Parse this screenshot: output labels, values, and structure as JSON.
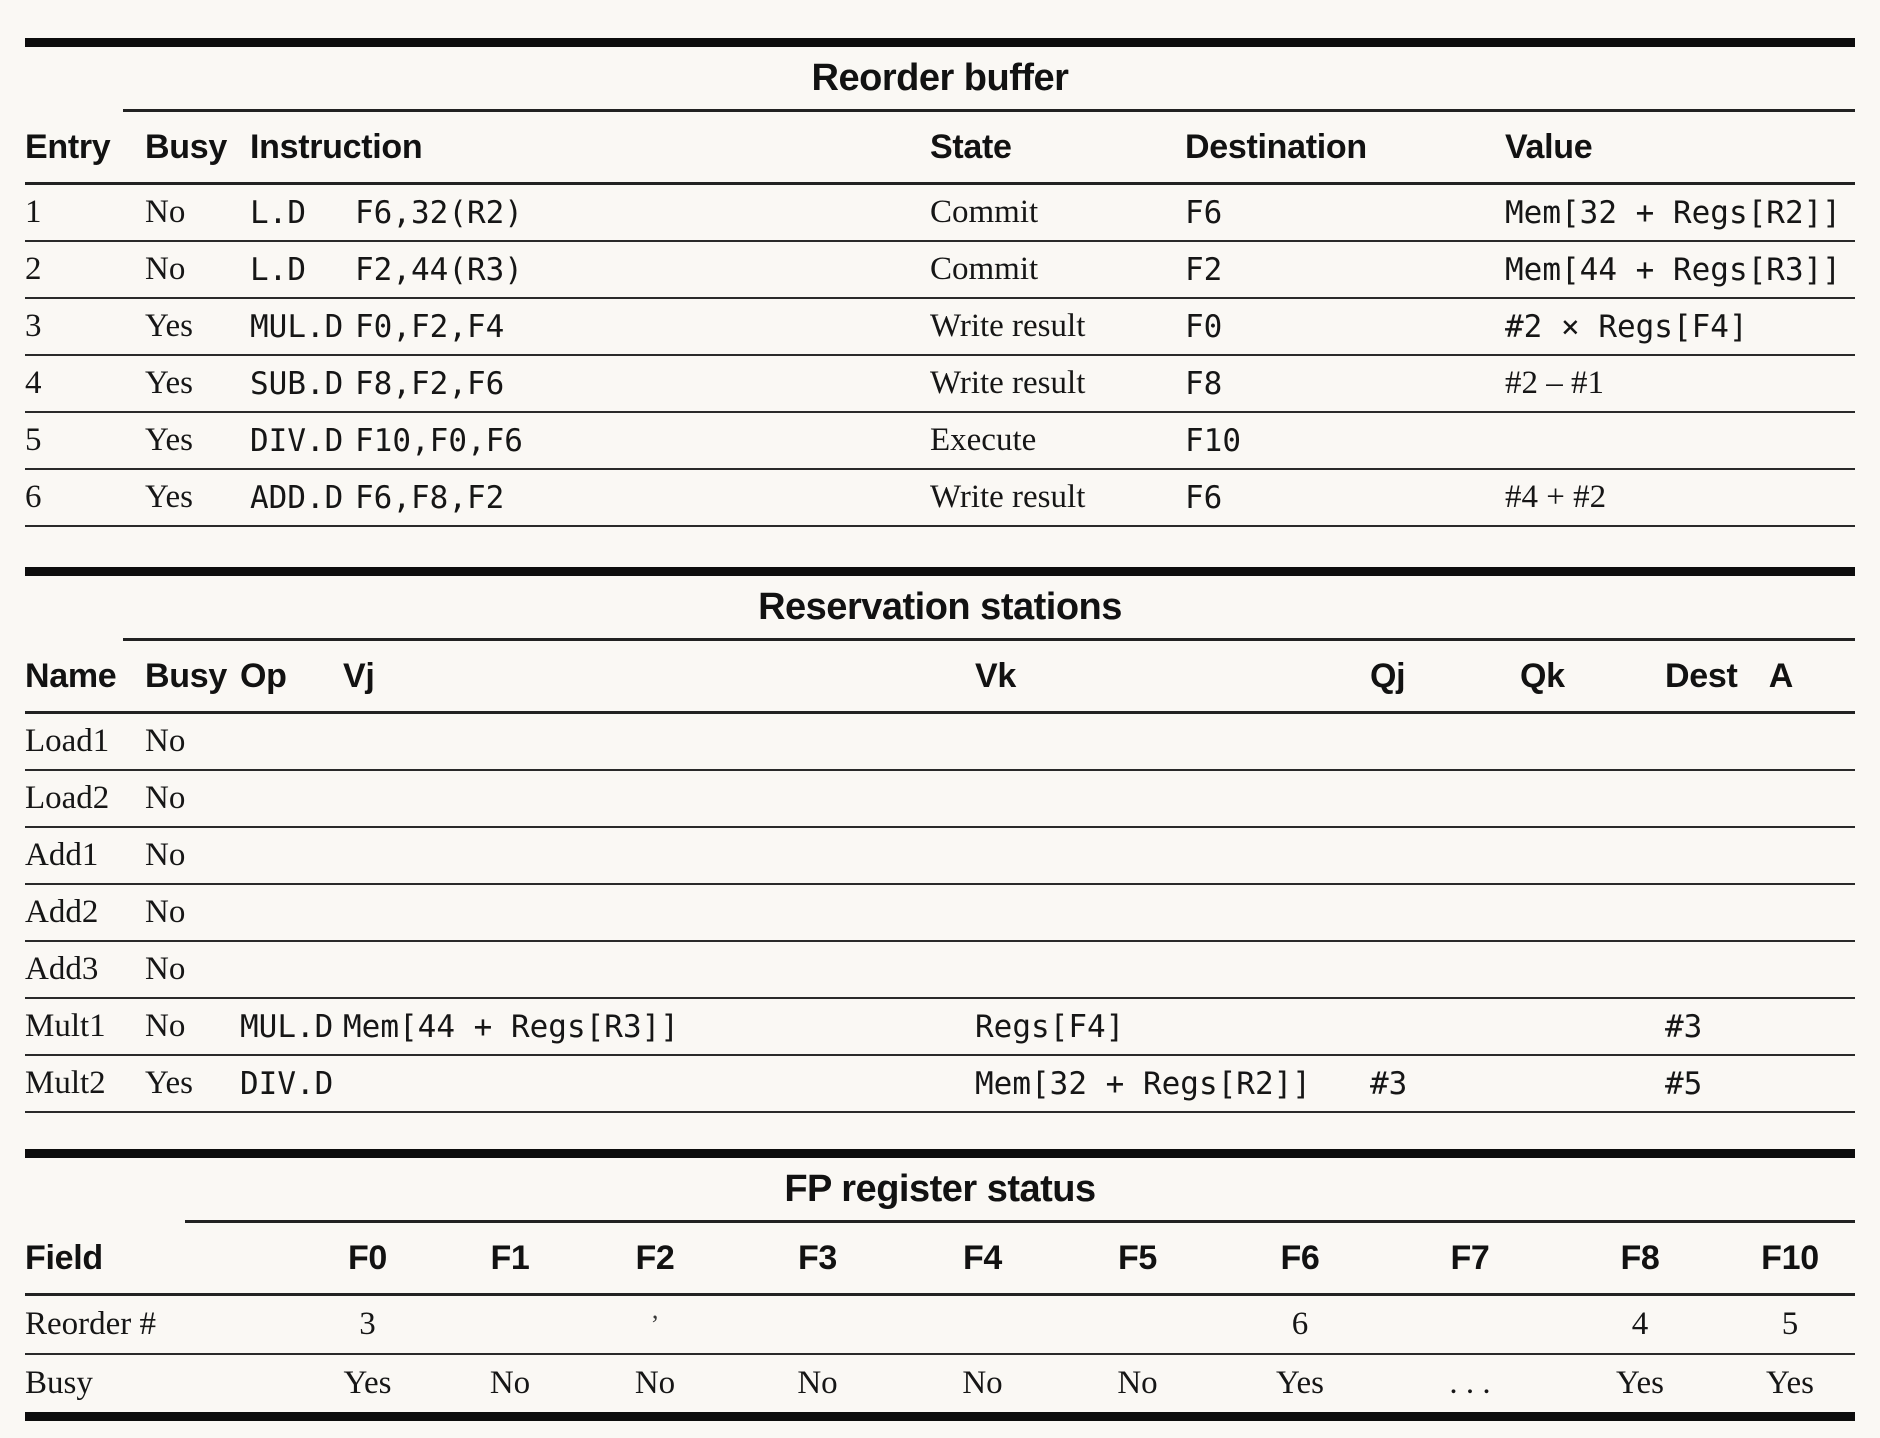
{
  "colors": {
    "ink": "#161616",
    "paper": "#faf8f4"
  },
  "reorder_buffer": {
    "title": "Reorder buffer",
    "headers": {
      "entry": "Entry",
      "busy": "Busy",
      "instruction": "Instruction",
      "state": "State",
      "destination": "Destination",
      "value": "Value"
    },
    "rows": [
      {
        "entry": "1",
        "busy": "No",
        "op": "L.D",
        "operands": "F6,32(R2)",
        "state": "Commit",
        "destination": "F6",
        "value": "Mem[32 + Regs[R2]]"
      },
      {
        "entry": "2",
        "busy": "No",
        "op": "L.D",
        "operands": "F2,44(R3)",
        "state": "Commit",
        "destination": "F2",
        "value": "Mem[44 + Regs[R3]]"
      },
      {
        "entry": "3",
        "busy": "Yes",
        "op": "MUL.D",
        "operands": "F0,F2,F4",
        "state": "Write result",
        "destination": "F0",
        "value": "#2 × Regs[F4]"
      },
      {
        "entry": "4",
        "busy": "Yes",
        "op": "SUB.D",
        "operands": "F8,F2,F6",
        "state": "Write result",
        "destination": "F8",
        "value": "#2 – #1"
      },
      {
        "entry": "5",
        "busy": "Yes",
        "op": "DIV.D",
        "operands": "F10,F0,F6",
        "state": "Execute",
        "destination": "F10",
        "value": ""
      },
      {
        "entry": "6",
        "busy": "Yes",
        "op": "ADD.D",
        "operands": "F6,F8,F2",
        "state": "Write result",
        "destination": "F6",
        "value": "#4 + #2"
      }
    ]
  },
  "reservation_stations": {
    "title": "Reservation stations",
    "headers": {
      "name": "Name",
      "busy": "Busy",
      "op": "Op",
      "vj": "Vj",
      "vk": "Vk",
      "qj": "Qj",
      "qk": "Qk",
      "dest": "Dest",
      "a": "A"
    },
    "rows": [
      {
        "name": "Load1",
        "busy": "No",
        "op": "",
        "vj": "",
        "vk": "",
        "qj": "",
        "qk": "",
        "dest": "",
        "a": ""
      },
      {
        "name": "Load2",
        "busy": "No",
        "op": "",
        "vj": "",
        "vk": "",
        "qj": "",
        "qk": "",
        "dest": "",
        "a": ""
      },
      {
        "name": "Add1",
        "busy": "No",
        "op": "",
        "vj": "",
        "vk": "",
        "qj": "",
        "qk": "",
        "dest": "",
        "a": ""
      },
      {
        "name": "Add2",
        "busy": "No",
        "op": "",
        "vj": "",
        "vk": "",
        "qj": "",
        "qk": "",
        "dest": "",
        "a": ""
      },
      {
        "name": "Add3",
        "busy": "No",
        "op": "",
        "vj": "",
        "vk": "",
        "qj": "",
        "qk": "",
        "dest": "",
        "a": ""
      },
      {
        "name": "Mult1",
        "busy": "No",
        "op": "MUL.D",
        "vj": "Mem[44 + Regs[R3]]",
        "vk": "Regs[F4]",
        "qj": "",
        "qk": "",
        "dest": "#3",
        "a": ""
      },
      {
        "name": "Mult2",
        "busy": "Yes",
        "op": "DIV.D",
        "vj": "",
        "vk": "Mem[32 + Regs[R2]]",
        "qj": "#3",
        "qk": "",
        "dest": "#5",
        "a": ""
      }
    ]
  },
  "fp_register_status": {
    "title": "FP register status",
    "headers": {
      "field": "Field",
      "f0": "F0",
      "f1": "F1",
      "f2": "F2",
      "f3": "F3",
      "f4": "F4",
      "f5": "F5",
      "f6": "F6",
      "f7": "F7",
      "f8": "F8",
      "f10": "F10"
    },
    "rows": [
      {
        "field": "Reorder #",
        "f0": "3",
        "f1": "",
        "f2": "’",
        "f3": "",
        "f4": "",
        "f5": "",
        "f6": "6",
        "f7": "",
        "f8": "4",
        "f10": "5"
      },
      {
        "field": "Busy",
        "f0": "Yes",
        "f1": "No",
        "f2": "No",
        "f3": "No",
        "f4": "No",
        "f5": "No",
        "f6": "Yes",
        "f7": ". . .",
        "f8": "Yes",
        "f10": "Yes"
      }
    ]
  }
}
